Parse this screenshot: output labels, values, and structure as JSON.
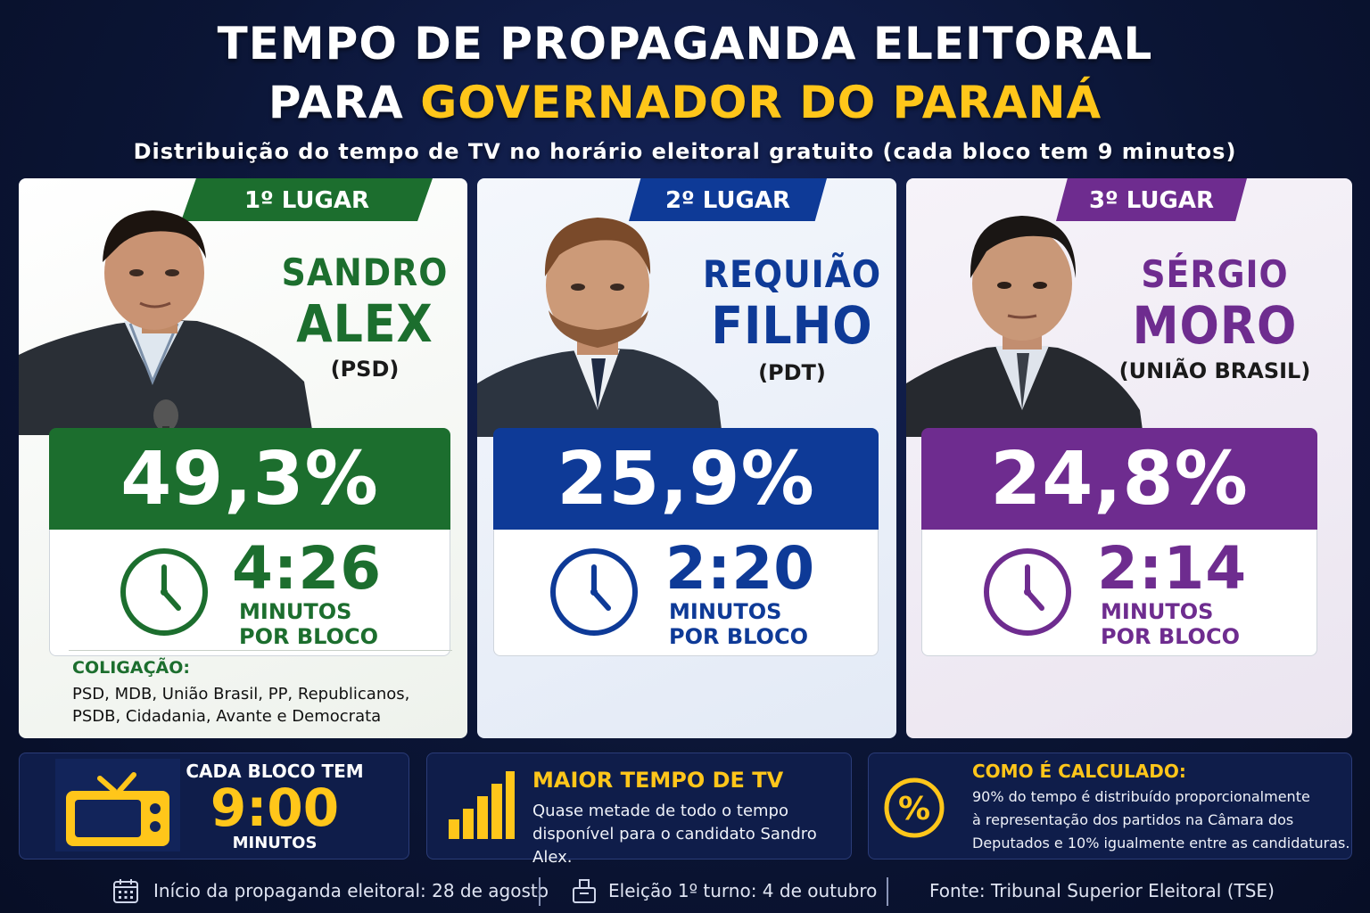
{
  "header": {
    "title_line1": "TEMPO DE PROPAGANDA ELEITORAL",
    "title_line2_prefix": "PARA",
    "title_line2_highlight": "GOVERNADOR DO PARANÁ",
    "subtitle": "Distribuição do tempo de TV no horário eleitoral gratuito (cada bloco tem 9 minutos)"
  },
  "candidates": [
    {
      "rank": "1º LUGAR",
      "name_line1": "SANDRO",
      "name_line2": "ALEX",
      "party": "(PSD)",
      "percent": "49,3%",
      "time": "4:26",
      "unit_line1": "MINUTOS",
      "unit_line2": "POR BLOCO",
      "color": "#1c6e2e",
      "coalition_title": "COLIGAÇÃO:",
      "coalition_line1": "PSD, MDB, União Brasil, PP, Republicanos,",
      "coalition_line2": "PSDB, Cidadania, Avante e Democrata"
    },
    {
      "rank": "2º LUGAR",
      "name_line1": "REQUIÃO",
      "name_line2": "FILHO",
      "party": "(PDT)",
      "percent": "25,9%",
      "time": "2:20",
      "unit_line1": "MINUTOS",
      "unit_line2": "POR BLOCO",
      "color": "#0e3a97"
    },
    {
      "rank": "3º LUGAR",
      "name_line1": "SÉRGIO",
      "name_line2": "MORO",
      "party": "(UNIÃO BRASIL)",
      "percent": "24,8%",
      "time": "2:14",
      "unit_line1": "MINUTOS",
      "unit_line2": "POR BLOCO",
      "color": "#6e2c8f"
    }
  ],
  "info": {
    "block": {
      "icon": "tv-icon",
      "label": "CADA BLOCO TEM",
      "value": "9:00",
      "unit": "MINUTOS"
    },
    "max_tv": {
      "icon": "bar-chart-icon",
      "title": "MAIOR TEMPO DE TV",
      "line1": "Quase metade de todo o tempo",
      "line2": "disponível para o candidato Sandro Alex."
    },
    "calc": {
      "icon": "percent-icon",
      "title": "COMO É CALCULADO:",
      "line1": "90% do tempo é distribuído proporcionalmente",
      "line2": "à representação dos partidos na Câmara dos",
      "line3": "Deputados e 10% igualmente entre as candidaturas."
    }
  },
  "footer": {
    "start": "Início da propaganda eleitoral: 28 de agosto",
    "election": "Eleição 1º turno: 4 de outubro",
    "source": "Fonte: Tribunal Superior Eleitoral (TSE)"
  },
  "colors": {
    "accent": "#ffc61a",
    "background": "#0b1535",
    "green": "#1c6e2e",
    "blue": "#0e3a97",
    "purple": "#6e2c8f"
  }
}
